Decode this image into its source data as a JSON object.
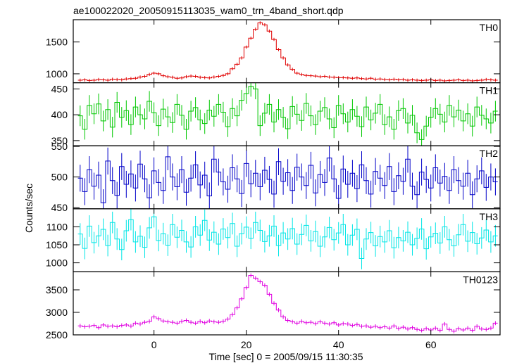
{
  "title": "ae100022020_20050915113035_wam0_trn_4band_short.qdp",
  "ylabel": "Counts/sec",
  "xlabel": "Time [sec] 0 = 2005/09/15 11:30:35",
  "chart_data": {
    "type": "line",
    "step": true,
    "error_bars": true,
    "shared_x": true,
    "xlim": [
      -17.5,
      75
    ],
    "x_ticks": [
      0,
      20,
      40,
      60
    ],
    "x_tick_labels": [
      "0",
      "20",
      "40",
      "60"
    ],
    "bin_width": 1,
    "panels": [
      {
        "name": "TH0",
        "color": "#e00000",
        "ylim": [
          860,
          1850
        ],
        "y_ticks": [
          1000,
          1500
        ],
        "y_tick_labels": [
          "1000",
          "1500"
        ],
        "err": 25,
        "x": [
          -16,
          -15,
          -14,
          -13,
          -12,
          -11,
          -10,
          -9,
          -8,
          -7,
          -6,
          -5,
          -4,
          -3,
          -2,
          -1,
          0,
          1,
          2,
          3,
          4,
          5,
          6,
          7,
          8,
          9,
          10,
          11,
          12,
          13,
          14,
          15,
          16,
          17,
          18,
          19,
          20,
          21,
          22,
          23,
          24,
          25,
          26,
          27,
          28,
          29,
          30,
          31,
          32,
          33,
          34,
          35,
          36,
          37,
          38,
          39,
          40,
          41,
          42,
          43,
          44,
          45,
          46,
          47,
          48,
          49,
          50,
          51,
          52,
          53,
          54,
          55,
          56,
          57,
          58,
          59,
          60,
          61,
          62,
          63,
          64,
          65,
          66,
          67,
          68,
          69,
          70,
          71,
          72,
          73,
          74
        ],
        "values": [
          900,
          905,
          895,
          900,
          910,
          905,
          900,
          915,
          910,
          905,
          920,
          925,
          930,
          950,
          960,
          990,
          1010,
          1000,
          970,
          955,
          945,
          930,
          935,
          955,
          965,
          960,
          945,
          940,
          935,
          950,
          960,
          975,
          1000,
          1080,
          1150,
          1250,
          1420,
          1560,
          1700,
          1800,
          1770,
          1670,
          1540,
          1380,
          1250,
          1140,
          1070,
          1010,
          990,
          975,
          970,
          965,
          955,
          960,
          950,
          945,
          940,
          940,
          935,
          930,
          935,
          925,
          920,
          930,
          915,
          920,
          910,
          905,
          915,
          905,
          910,
          900,
          905,
          900,
          895,
          900,
          905,
          895,
          900,
          890,
          895,
          900,
          905,
          895,
          900,
          890,
          895,
          900,
          910,
          905,
          900
        ]
      },
      {
        "name": "TH1",
        "color": "#00c800",
        "ylim": [
          340,
          462
        ],
        "y_ticks": [
          350,
          400,
          450
        ],
        "y_tick_labels": [
          "350",
          "400",
          "450"
        ],
        "err": 20,
        "x": [
          -16,
          -15,
          -14,
          -13,
          -12,
          -11,
          -10,
          -9,
          -8,
          -7,
          -6,
          -5,
          -4,
          -3,
          -2,
          -1,
          0,
          1,
          2,
          3,
          4,
          5,
          6,
          7,
          8,
          9,
          10,
          11,
          12,
          13,
          14,
          15,
          16,
          17,
          18,
          19,
          20,
          21,
          22,
          23,
          24,
          25,
          26,
          27,
          28,
          29,
          30,
          31,
          32,
          33,
          34,
          35,
          36,
          37,
          38,
          39,
          40,
          41,
          42,
          43,
          44,
          45,
          46,
          47,
          48,
          49,
          50,
          51,
          52,
          53,
          54,
          55,
          56,
          57,
          58,
          59,
          60,
          61,
          62,
          63,
          64,
          65,
          66,
          67,
          68,
          69,
          70,
          71,
          72,
          73,
          74
        ],
        "values": [
          398,
          372,
          418,
          402,
          421,
          388,
          410,
          376,
          424,
          395,
          408,
          381,
          415,
          400,
          392,
          426,
          404,
          379,
          411,
          396,
          385,
          420,
          399,
          372,
          407,
          414,
          390,
          383,
          409,
          397,
          420,
          405,
          377,
          412,
          398,
          428,
          441,
          455,
          450,
          379,
          403,
          420,
          386,
          410,
          395,
          373,
          416,
          401,
          389,
          422,
          398,
          381,
          407,
          414,
          392,
          375,
          418,
          402,
          386,
          410,
          397,
          377,
          415,
          390,
          403,
          420,
          381,
          396,
          372,
          408,
          412,
          384,
          399,
          365,
          352,
          378,
          395,
          412,
          401,
          386,
          418,
          396,
          409,
          388,
          402,
          378,
          415,
          399,
          392,
          384,
          407
        ]
      },
      {
        "name": "TH2",
        "color": "#0000c8",
        "ylim": [
          448,
          551
        ],
        "y_ticks": [
          450,
          500,
          550
        ],
        "y_tick_labels": [
          "450",
          "500",
          "550"
        ],
        "err": 22,
        "x": [
          -16,
          -15,
          -14,
          -13,
          -12,
          -11,
          -10,
          -9,
          -8,
          -7,
          -6,
          -5,
          -4,
          -3,
          -2,
          -1,
          0,
          1,
          2,
          3,
          4,
          5,
          6,
          7,
          8,
          9,
          10,
          11,
          12,
          13,
          14,
          15,
          16,
          17,
          18,
          19,
          20,
          21,
          22,
          23,
          24,
          25,
          26,
          27,
          28,
          29,
          30,
          31,
          32,
          33,
          34,
          35,
          36,
          37,
          38,
          39,
          40,
          41,
          42,
          43,
          44,
          45,
          46,
          47,
          48,
          49,
          50,
          51,
          52,
          53,
          54,
          55,
          56,
          57,
          58,
          59,
          60,
          61,
          62,
          63,
          64,
          65,
          66,
          67,
          68,
          69,
          70,
          71,
          72,
          73,
          74
        ],
        "values": [
          498,
          476,
          512,
          485,
          503,
          458,
          526,
          494,
          470,
          517,
          488,
          505,
          482,
          521,
          497,
          466,
          510,
          491,
          478,
          533,
          500,
          484,
          512,
          475,
          498,
          520,
          487,
          503,
          469,
          529,
          508,
          492,
          480,
          515,
          497,
          473,
          522,
          489,
          506,
          484,
          511,
          496,
          472,
          525,
          493,
          507,
          478,
          516,
          500,
          486,
          519,
          474,
          504,
          491,
          531,
          497,
          465,
          513,
          488,
          506,
          481,
          520,
          494,
          472,
          509,
          498,
          486,
          517,
          476,
          502,
          493,
          529,
          485,
          471,
          508,
          496,
          482,
          515,
          490,
          501,
          478,
          512,
          494,
          485,
          506,
          471,
          497,
          510,
          483,
          500,
          492
        ]
      },
      {
        "name": "TH3",
        "color": "#00e6e6",
        "ylim": [
          975,
          1150
        ],
        "y_ticks": [
          1000,
          1050,
          1100
        ],
        "y_tick_labels": [
          "1000",
          "1050",
          "1100"
        ],
        "err": 30,
        "x": [
          -16,
          -15,
          -14,
          -13,
          -12,
          -11,
          -10,
          -9,
          -8,
          -7,
          -6,
          -5,
          -4,
          -3,
          -2,
          -1,
          0,
          1,
          2,
          3,
          4,
          5,
          6,
          7,
          8,
          9,
          10,
          11,
          12,
          13,
          14,
          15,
          16,
          17,
          18,
          19,
          20,
          21,
          22,
          23,
          24,
          25,
          26,
          27,
          28,
          29,
          30,
          31,
          32,
          33,
          34,
          35,
          36,
          37,
          38,
          39,
          40,
          41,
          42,
          43,
          44,
          45,
          46,
          47,
          48,
          49,
          50,
          51,
          52,
          53,
          54,
          55,
          56,
          57,
          58,
          59,
          60,
          61,
          62,
          63,
          64,
          65,
          66,
          67,
          68,
          69,
          70,
          71,
          72,
          73,
          74
        ],
        "values": [
          1080,
          1040,
          1102,
          1056,
          1075,
          1093,
          1048,
          1112,
          1066,
          1037,
          1089,
          1120,
          1058,
          1074,
          1043,
          1097,
          1128,
          1062,
          1081,
          1049,
          1106,
          1071,
          1090,
          1058,
          1044,
          1100,
          1077,
          1118,
          1063,
          1085,
          1052,
          1094,
          1070,
          1109,
          1046,
          1081,
          1099,
          1068,
          1112,
          1090,
          1059,
          1075,
          1102,
          1048,
          1083,
          1066,
          1095,
          1052,
          1079,
          1104,
          1061,
          1087,
          1046,
          1072,
          1098,
          1064,
          1083,
          1106,
          1050,
          1077,
          1093,
          1012,
          1066,
          1084,
          1047,
          1073,
          1058,
          1089,
          1042,
          1070,
          1061,
          1085,
          1050,
          1068,
          1094,
          1039,
          1072,
          1082,
          1055,
          1100,
          1064,
          1047,
          1078,
          1106,
          1060,
          1084,
          1053,
          1069,
          1091,
          1058,
          1075
        ]
      },
      {
        "name": "TH0123",
        "color": "#e000e0",
        "ylim": [
          2500,
          3900
        ],
        "y_ticks": [
          2500,
          3000,
          3500
        ],
        "y_tick_labels": [
          "2500",
          "3000",
          "3500"
        ],
        "err": 45,
        "x": [
          -16,
          -15,
          -14,
          -13,
          -12,
          -11,
          -10,
          -9,
          -8,
          -7,
          -6,
          -5,
          -4,
          -3,
          -2,
          -1,
          0,
          1,
          2,
          3,
          4,
          5,
          6,
          7,
          8,
          9,
          10,
          11,
          12,
          13,
          14,
          15,
          16,
          17,
          18,
          19,
          20,
          21,
          22,
          23,
          24,
          25,
          26,
          27,
          28,
          29,
          30,
          31,
          32,
          33,
          34,
          35,
          36,
          37,
          38,
          39,
          40,
          41,
          42,
          43,
          44,
          45,
          46,
          47,
          48,
          49,
          50,
          51,
          52,
          53,
          54,
          55,
          56,
          57,
          58,
          59,
          60,
          61,
          62,
          63,
          64,
          65,
          66,
          67,
          68,
          69,
          70,
          71,
          72,
          73,
          74
        ],
        "values": [
          2700,
          2680,
          2690,
          2710,
          2660,
          2720,
          2690,
          2700,
          2680,
          2710,
          2720,
          2695,
          2760,
          2740,
          2780,
          2800,
          2900,
          2860,
          2810,
          2790,
          2780,
          2760,
          2800,
          2820,
          2780,
          2760,
          2800,
          2770,
          2810,
          2790,
          2780,
          2800,
          2850,
          2950,
          3100,
          3300,
          3550,
          3820,
          3760,
          3680,
          3600,
          3400,
          3200,
          3050,
          2900,
          2820,
          2790,
          2760,
          2800,
          2770,
          2780,
          2750,
          2790,
          2760,
          2740,
          2770,
          2720,
          2750,
          2740,
          2710,
          2730,
          2690,
          2700,
          2670,
          2690,
          2660,
          2680,
          2650,
          2700,
          2640,
          2670,
          2630,
          2660,
          2620,
          2600,
          2640,
          2610,
          2650,
          2600,
          2740,
          2620,
          2580,
          2640,
          2610,
          2650,
          2600,
          2690,
          2630,
          2620,
          2650,
          2760
        ]
      }
    ]
  }
}
